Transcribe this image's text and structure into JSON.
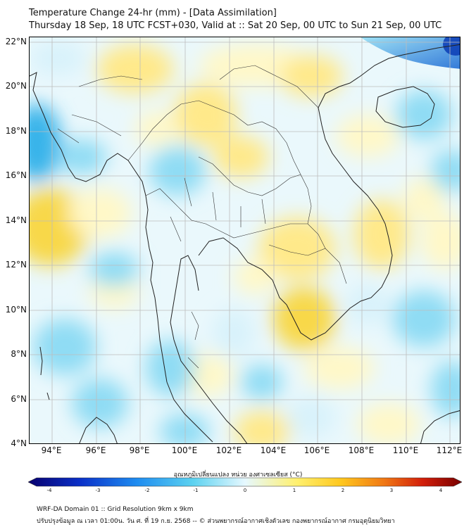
{
  "header": {
    "title": "Temperature Change 24-hr (mm) - [Data Assimilation]",
    "subtitle": "Thursday 18 Sep, 18 UTC FCST+030, Valid at :: Sat 20 Sep, 00 UTC to Sun 21 Sep, 00 UTC"
  },
  "axes": {
    "lat_labels": [
      "22°N",
      "20°N",
      "18°N",
      "16°N",
      "14°N",
      "12°N",
      "10°N",
      "8°N",
      "6°N",
      "4°N"
    ],
    "lon_labels": [
      "94°E",
      "96°E",
      "98°E",
      "100°E",
      "102°E",
      "104°E",
      "106°E",
      "108°E",
      "110°E",
      "112°E"
    ]
  },
  "colorbar": {
    "title": "อุณหภูมิเปลี่ยนแปลง หน่วย องศาเซลเซียส (°C)",
    "ticks": [
      "-4",
      "-3",
      "-2",
      "-1",
      "0",
      "1",
      "2",
      "3",
      "4"
    ],
    "range": [
      -4,
      4
    ],
    "colors": [
      "#08006e",
      "#0a30c8",
      "#1e8cf0",
      "#5cd2f0",
      "#e6f8ff",
      "#fffae0",
      "#fff06e",
      "#ffc81e",
      "#f07814",
      "#d21e0a",
      "#780000"
    ]
  },
  "map": {
    "field_colors": {
      "cool_light": "#d8f2fb",
      "cool_mid": "#8fdcf4",
      "cool_strong": "#38b4ea",
      "cool_deep": "#1464d2",
      "neutral": "#ffffff",
      "warm_light": "#fff8c8",
      "warm_mid": "#ffe98a",
      "warm_strong": "#f8d84a"
    }
  },
  "footer": {
    "line1": "WRF-DA Domain 01 :: Grid Resolution 9km x 9km",
    "line2": "ปรับปรุงข้อมูล ณ เวลา 01:00น. วัน ศ. ที่ 19 ก.ย. 2568 -- © ส่วนพยากรณ์อากาศเชิงตัวเลข กองพยากรณ์อากาศ กรมอุตุนิยมวิทยา"
  }
}
